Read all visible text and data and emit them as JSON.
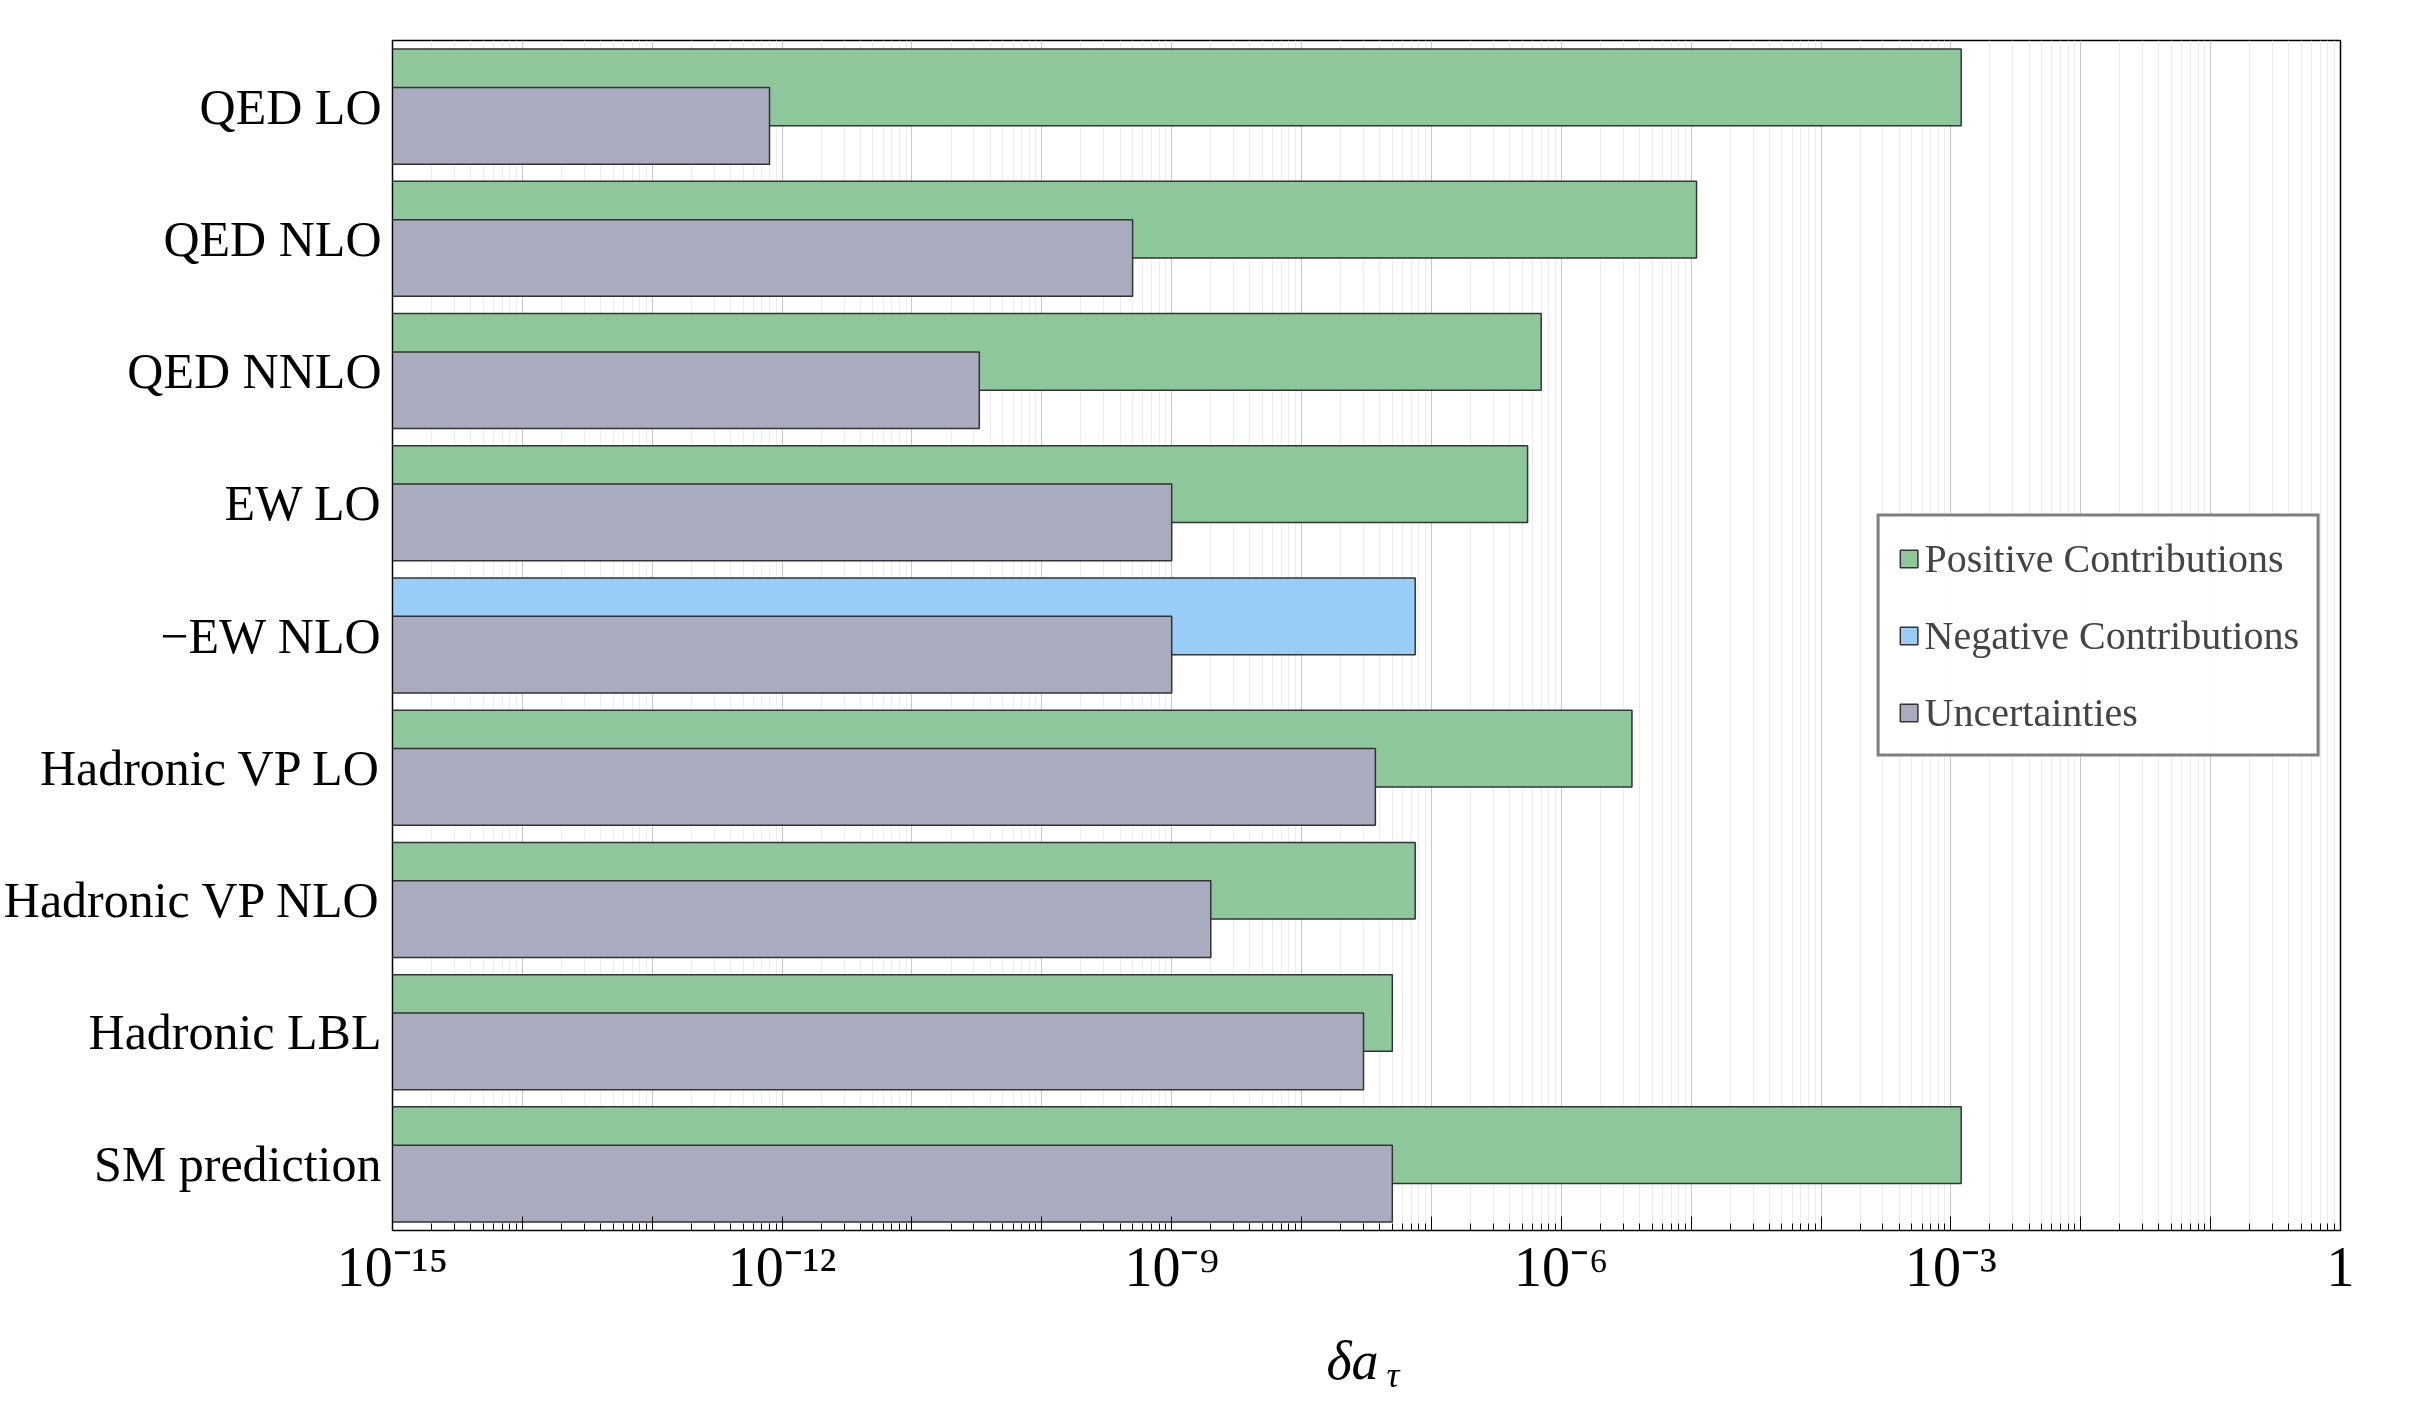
{
  "chart_data": {
    "type": "bar",
    "orientation": "horizontal",
    "log": "x",
    "xlabel": "δa$_{τ}$",
    "categories": [
      "QED LO",
      "QED NLO",
      "QED NNLO",
      "EW LO",
      "−EW NLO",
      "Hadronic VP LO",
      "Hadronic VP NLO",
      "Hadronic LBL",
      "SM prediction"
    ],
    "series": [
      {
        "name": "Positive Contributions",
        "color": "#8fc79c",
        "values": [
          0.0012,
          1.1e-05,
          7e-07,
          5.5e-07,
          null,
          3.5e-06,
          7.5e-08,
          5e-08,
          0.0012
        ]
      },
      {
        "name": "Negative Contributions",
        "color": "#99ccf7",
        "values": [
          null,
          null,
          null,
          null,
          7.5e-08,
          null,
          null,
          null,
          null
        ]
      },
      {
        "name": "Uncertainties",
        "color": "#a9abbf",
        "values": [
          8e-13,
          5e-10,
          3.3e-11,
          1e-09,
          1e-09,
          3.7e-08,
          2e-09,
          3e-08,
          5e-08
        ]
      }
    ],
    "xlim": [
      1e-15,
      1
    ],
    "xticks": [
      {
        "value": 1e-15,
        "label": "10⁻¹⁵"
      },
      {
        "value": 1e-14,
        "label": null
      },
      {
        "value": 1e-13,
        "label": null
      },
      {
        "value": 1e-12,
        "label": "10⁻¹²"
      },
      {
        "value": 1e-11,
        "label": null
      },
      {
        "value": 1e-10,
        "label": null
      },
      {
        "value": 1e-09,
        "label": "10⁻⁹"
      },
      {
        "value": 1e-08,
        "label": null
      },
      {
        "value": 1e-07,
        "label": null
      },
      {
        "value": 1e-06,
        "label": "10⁻⁶"
      },
      {
        "value": 1e-05,
        "label": null
      },
      {
        "value": 0.0001,
        "label": null
      },
      {
        "value": 0.001,
        "label": "10⁻³"
      },
      {
        "value": 0.01,
        "label": null
      },
      {
        "value": 0.1,
        "label": null
      },
      1
    ],
    "grid": "x",
    "legend": "right"
  }
}
